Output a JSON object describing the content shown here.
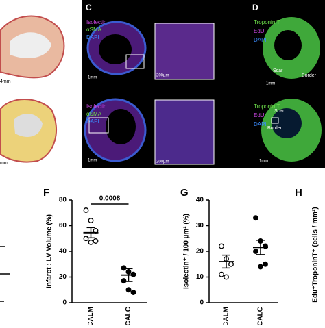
{
  "panels": {
    "left": {
      "scale_top": "4mm",
      "scale_bottom": "mm"
    },
    "c": {
      "letter": "C",
      "stain1": "Isolectin",
      "stain2": "αSMA",
      "stain3": "DAPI",
      "scale_whole": "1mm",
      "scale_zoom": "200µm",
      "stain1_b": "Isolectin",
      "stain2_b": "αSMA",
      "stain3_b": "DAPI",
      "scale_whole_b": "1mm",
      "scale_zoom_b": "200µm"
    },
    "d": {
      "letter": "D",
      "stain1": "Troponin T",
      "stain2": "EdU",
      "stain3": "DAPI",
      "scar": "Scar",
      "border": "Border",
      "scale": "1mm",
      "stain1_b": "Troponin T",
      "stain2_b": "EdU",
      "stain3_b": "DAPI",
      "scar_b": "Scar",
      "border_b": "Border",
      "scale_b": "1mm"
    },
    "h": {
      "letter": "H",
      "ylabel": "Edu⁺TroponinT⁺ (cells / mm²)"
    }
  },
  "chart_data": [
    {
      "type": "dot",
      "title": "F",
      "ylabel": "Infarct : LV Volume (%)",
      "ylim": [
        0,
        80
      ],
      "yticks": [
        0,
        20,
        40,
        60,
        80
      ],
      "groups": [
        {
          "name": "CALM",
          "values": [
            72,
            64,
            56,
            50,
            47,
            48
          ],
          "mean": 54.5,
          "sem": 4
        },
        {
          "name": "CALC",
          "values": [
            27,
            24,
            22,
            17,
            10,
            8
          ],
          "mean": 21.5,
          "sem": 5
        }
      ],
      "annotation": "0.0008"
    },
    {
      "type": "dot",
      "title": "G",
      "ylabel": "Isolectin⁺ / 100 µm² (%)",
      "ylim": [
        0,
        40
      ],
      "yticks": [
        0,
        10,
        20,
        30,
        40
      ],
      "groups": [
        {
          "name": "CALM",
          "values": [
            22,
            17,
            15,
            11,
            10
          ],
          "mean": 16,
          "sem": 2.5
        },
        {
          "name": "CALC",
          "values": [
            33,
            24,
            22,
            20,
            14,
            15
          ],
          "mean": 21.5,
          "sem": 2.8
        }
      ]
    }
  ]
}
